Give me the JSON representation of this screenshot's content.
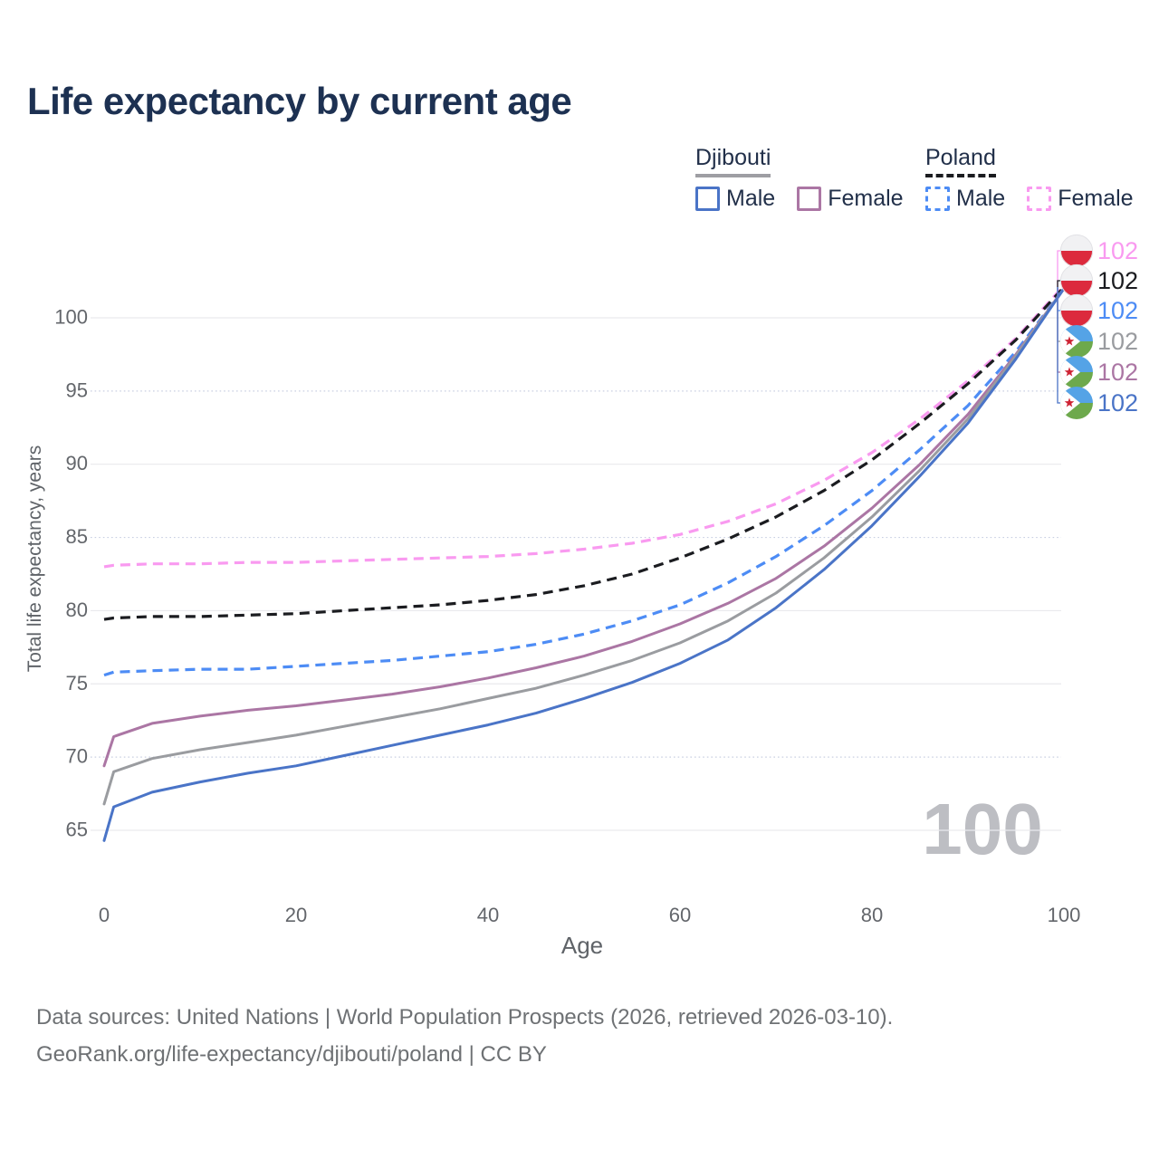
{
  "title": "Life expectancy by current age",
  "legend": {
    "groups": [
      {
        "country": "Djibouti",
        "underline_style": "solid",
        "underline_color": "#9e9ea3",
        "items": [
          {
            "label": "Male",
            "color": "#4a74c7",
            "dashed": false
          },
          {
            "label": "Female",
            "color": "#ab76a4",
            "dashed": false
          }
        ]
      },
      {
        "country": "Poland",
        "underline_style": "dashed",
        "underline_color": "#1b1c20",
        "items": [
          {
            "label": "Male",
            "color": "#4d8cf5",
            "dashed": true
          },
          {
            "label": "Female",
            "color": "#f99af0",
            "dashed": true
          }
        ]
      }
    ]
  },
  "chart_data": {
    "type": "line",
    "title": "Life expectancy by current age",
    "xlabel": "Age",
    "ylabel": "Total life expectancy, years",
    "xlim": [
      0,
      100
    ],
    "ylim": [
      63,
      103
    ],
    "xticks": [
      0,
      20,
      40,
      60,
      80,
      100
    ],
    "yticks": [
      65,
      70,
      75,
      80,
      85,
      90,
      95,
      100
    ],
    "grid": true,
    "legend_position": "top-right",
    "x": [
      0,
      1,
      5,
      10,
      15,
      20,
      25,
      30,
      35,
      40,
      45,
      50,
      55,
      60,
      65,
      70,
      75,
      80,
      85,
      90,
      95,
      100
    ],
    "series": [
      {
        "name": "Poland Female",
        "country": "Poland",
        "sex": "Female",
        "color": "#f99af0",
        "dashed": true,
        "values": [
          83.0,
          83.1,
          83.2,
          83.2,
          83.3,
          83.3,
          83.4,
          83.5,
          83.6,
          83.7,
          83.9,
          84.2,
          84.6,
          85.2,
          86.1,
          87.3,
          88.9,
          90.8,
          93.1,
          95.7,
          98.6,
          102.2
        ]
      },
      {
        "name": "Poland Total",
        "country": "Poland",
        "sex": "Total",
        "color": "#1b1c20",
        "dashed": true,
        "values": [
          79.4,
          79.5,
          79.6,
          79.6,
          79.7,
          79.8,
          80.0,
          80.2,
          80.4,
          80.7,
          81.1,
          81.7,
          82.5,
          83.6,
          84.9,
          86.4,
          88.2,
          90.3,
          92.8,
          95.5,
          98.5,
          102.1
        ]
      },
      {
        "name": "Poland Male",
        "country": "Poland",
        "sex": "Male",
        "color": "#4d8cf5",
        "dashed": true,
        "values": [
          75.6,
          75.8,
          75.9,
          76.0,
          76.0,
          76.2,
          76.4,
          76.6,
          76.9,
          77.2,
          77.7,
          78.4,
          79.3,
          80.4,
          81.9,
          83.7,
          85.8,
          88.2,
          91.0,
          94.0,
          97.7,
          102.0
        ]
      },
      {
        "name": "Djibouti Female",
        "country": "Djibouti",
        "sex": "Female",
        "color": "#ab76a4",
        "dashed": false,
        "values": [
          69.4,
          71.4,
          72.3,
          72.8,
          73.2,
          73.5,
          73.9,
          74.3,
          74.8,
          75.4,
          76.1,
          76.9,
          77.9,
          79.1,
          80.5,
          82.2,
          84.4,
          87.0,
          90.0,
          93.4,
          97.5,
          102.0
        ]
      },
      {
        "name": "Djibouti Total",
        "country": "Djibouti",
        "sex": "Total",
        "color": "#9a9ca0",
        "dashed": false,
        "values": [
          66.8,
          69.0,
          69.9,
          70.5,
          71.0,
          71.5,
          72.1,
          72.7,
          73.3,
          74.0,
          74.7,
          75.6,
          76.6,
          77.8,
          79.3,
          81.2,
          83.6,
          86.4,
          89.6,
          93.1,
          97.4,
          102.0
        ]
      },
      {
        "name": "Djibouti Male",
        "country": "Djibouti",
        "sex": "Male",
        "color": "#4a74c7",
        "dashed": false,
        "values": [
          64.3,
          66.6,
          67.6,
          68.3,
          68.9,
          69.4,
          70.1,
          70.8,
          71.5,
          72.2,
          73.0,
          74.0,
          75.1,
          76.4,
          78.0,
          80.2,
          82.8,
          85.8,
          89.2,
          92.8,
          97.2,
          102.0
        ]
      }
    ],
    "end_labels": [
      {
        "value": "102",
        "flag": "poland",
        "color": "#f99af0",
        "series": "Poland Female"
      },
      {
        "value": "102",
        "flag": "poland",
        "color": "#1b1c20",
        "series": "Poland Total"
      },
      {
        "value": "102",
        "flag": "poland",
        "color": "#4d8cf5",
        "series": "Poland Male"
      },
      {
        "value": "102",
        "flag": "djibouti",
        "color": "#9a9ca0",
        "series": "Djibouti Total"
      },
      {
        "value": "102",
        "flag": "djibouti",
        "color": "#ab76a4",
        "series": "Djibouti Female"
      },
      {
        "value": "102",
        "flag": "djibouti",
        "color": "#4a74c7",
        "series": "Djibouti Male"
      }
    ],
    "hover_age_label": "100"
  },
  "footer": {
    "line1": "Data sources: United Nations | World Population Prospects (2026, retrieved 2026-03-10).",
    "line2": "GeoRank.org/life-expectancy/djibouti/poland | CC BY"
  }
}
